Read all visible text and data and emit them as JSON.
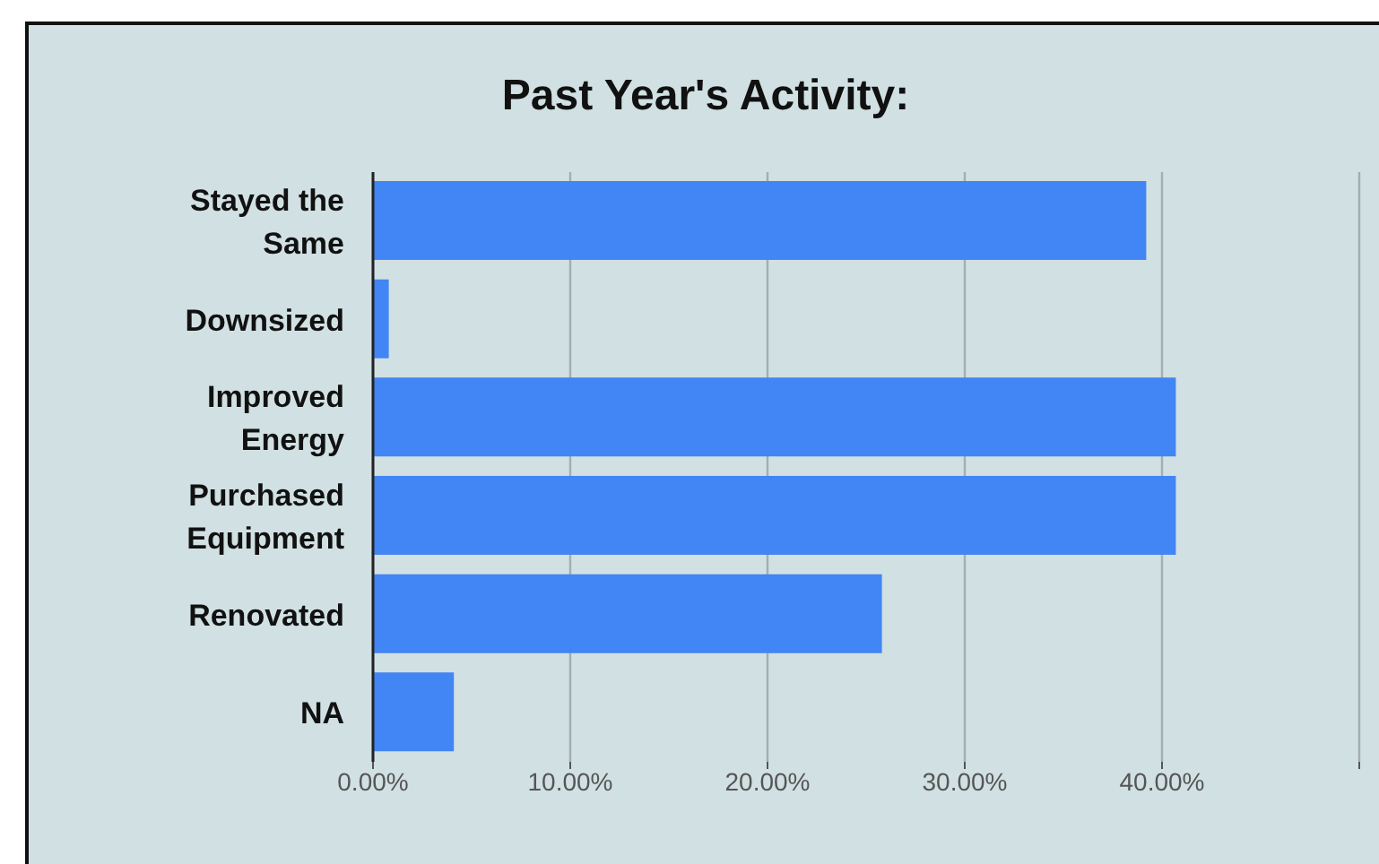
{
  "chart_data": {
    "type": "bar",
    "orientation": "horizontal",
    "title": "Past Year's Activity:",
    "categories": [
      "Stayed the Same",
      "Downsized",
      "Improved Energy",
      "Purchased Equipment",
      "Renovated",
      "NA"
    ],
    "values": [
      39.2,
      0.8,
      40.7,
      40.7,
      25.8,
      4.1
    ],
    "color": "#4285f4",
    "xlim": [
      0,
      50
    ],
    "xticks": [
      {
        "value": 0,
        "label": "0.00%"
      },
      {
        "value": 10,
        "label": "10.00%"
      },
      {
        "value": 20,
        "label": "20.00%"
      },
      {
        "value": 30,
        "label": "30.00%"
      },
      {
        "value": 40,
        "label": "40.00%"
      },
      {
        "value": 50,
        "label": null
      }
    ],
    "grid": "x",
    "legend": false
  }
}
